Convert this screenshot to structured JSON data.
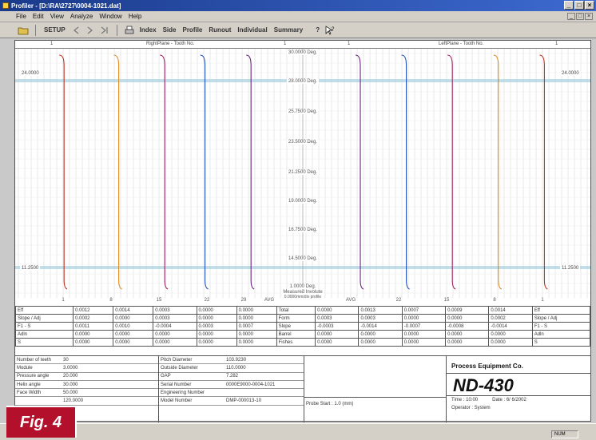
{
  "window": {
    "title": "Profiler - [D:\\RA\\2727\\0004-1021.dat]",
    "buttons": [
      "_",
      "□",
      "×"
    ]
  },
  "menu": [
    "File",
    "Edit",
    "View",
    "Analyze",
    "Window",
    "Help"
  ],
  "toolbar": {
    "setup": "SETUP",
    "btn_index": "Index",
    "btn_side": "Side",
    "btn_profile": "Profile",
    "btn_runout": "Runout",
    "btn_individual": "Individual",
    "btn_summary": "Summary",
    "btn_help": "?"
  },
  "chart_header": {
    "left_center": "RightPlane - Tooth No.",
    "right_center": "LeftPlane - Tooth No.",
    "left_edge": "1",
    "right_edge": "1",
    "mid_left": "1",
    "mid_right": "1"
  },
  "chart_data": {
    "type": "line",
    "title": "",
    "y_ticks": [
      "30.0000 Deg.",
      "28.0000 Deg.",
      "25.7500 Deg.",
      "23.5000 Deg.",
      "21.2500 Deg.",
      "19.0000 Deg.",
      "16.7500 Deg.",
      "14.5000 Deg.",
      "1.0000 Deg."
    ],
    "left_limits": {
      "top": "24.0000",
      "bottom": "11.2500"
    },
    "right_limits": {
      "top": "24.0000",
      "bottom": "11.2500"
    },
    "measured_label": "Measured Involute",
    "measured_sub": "0.0000mm/div profile",
    "x_tooth_labels": [
      "1",
      "8",
      "15",
      "22",
      "29",
      "AVG",
      "AVG",
      "22",
      "15",
      "8",
      "1"
    ],
    "series": [
      {
        "color": "#c03020",
        "x_frac": 0.085
      },
      {
        "color": "#e08a20",
        "x_frac": 0.18
      },
      {
        "color": "#a02060",
        "x_frac": 0.26
      },
      {
        "color": "#2050c0",
        "x_frac": 0.33
      },
      {
        "color": "#6a2080",
        "x_frac": 0.41
      },
      {
        "color": "#6a2080",
        "x_frac": 0.6
      },
      {
        "color": "#2050c0",
        "x_frac": 0.68
      },
      {
        "color": "#a02060",
        "x_frac": 0.76
      },
      {
        "color": "#e08a20",
        "x_frac": 0.84
      },
      {
        "color": "#c03020",
        "x_frac": 0.92
      }
    ]
  },
  "stats_table": {
    "rows": [
      [
        "Eff",
        "0.0012",
        "0.0014",
        "0.0003",
        "0.0000",
        "0.0000",
        "Total",
        "0.0000",
        "0.0013",
        "0.0007",
        "0.0009",
        "0.0014",
        "Eff"
      ],
      [
        "Slope / Adj",
        "0.0002",
        "0.0000",
        "0.0003",
        "0.0000",
        "0.0000",
        "Form",
        "0.0003",
        "0.0003",
        "0.0000",
        "0.0000",
        "0.0002",
        "Slope / Adj"
      ],
      [
        "F1 - S",
        "0.0011",
        "0.0010",
        "-0.0004",
        "0.0003",
        "0.0007",
        "Slope",
        "-0.0003",
        "-0.0014",
        "-0.0007",
        "-0.0008",
        "-0.0014",
        "F1 - S"
      ],
      [
        "Adln",
        "0.0000",
        "0.0000",
        "0.0000",
        "0.0000",
        "0.0000",
        "Barrel",
        "0.0000",
        "0.0000",
        "0.0000",
        "0.0000",
        "0.0000",
        "Adln"
      ],
      [
        "S",
        "0.0000",
        "0.0000",
        "0.0000",
        "0.0000",
        "0.0000",
        "Fishes",
        "0.0000",
        "0.0000",
        "0.0000",
        "0.0000",
        "0.0000",
        "S"
      ]
    ]
  },
  "footer": {
    "col1": [
      [
        "Number of teeth",
        "30"
      ],
      [
        "Module",
        "3.0000"
      ],
      [
        "Pressure angle",
        "20.000"
      ],
      [
        "Helix angle",
        "30.000"
      ],
      [
        "Face Width",
        "50.000"
      ],
      [
        "",
        "120.0000"
      ]
    ],
    "col2": [
      [
        "Pitch Diameter",
        "103.9230"
      ],
      [
        "Outside Diameter",
        "110.0000"
      ],
      [
        "GAP",
        "7.282"
      ],
      [
        "Serial Number",
        "0000E9000-0004-1021"
      ],
      [
        "Engineering Number",
        ""
      ],
      [
        "Model Number",
        "DMP-000013-10"
      ]
    ],
    "col3_note": "Probe Start : 1.0 (mm)",
    "company": "Process Equipment Co.",
    "model": "ND-430",
    "time_label": "Time : 10:00",
    "date_label": "Date : 6/ 6/2002",
    "operator_label": "Operator : System"
  },
  "status": {
    "right": "NUM"
  },
  "figure_label": "Fig. 4",
  "colors": {
    "grid": "#d8d8d8",
    "band": "#a8d0e0",
    "title_bar": "#1a3a8a",
    "fig_badge": "#b3102c"
  }
}
